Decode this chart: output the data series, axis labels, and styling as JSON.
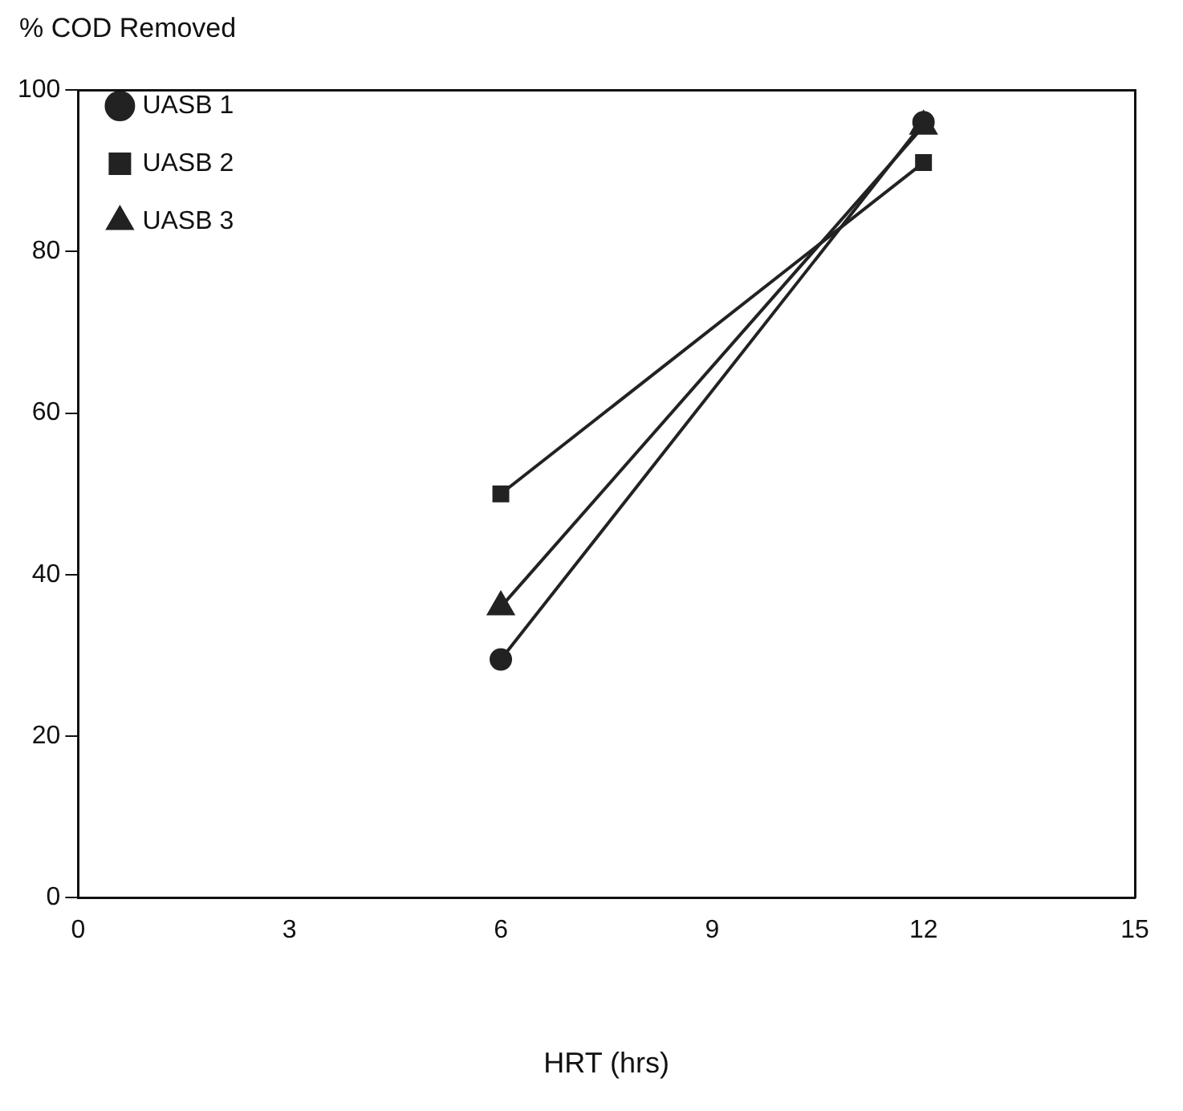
{
  "chart_data": {
    "type": "line",
    "ylabel": "% COD Removed",
    "xlabel": "HRT (hrs)",
    "x": [
      6,
      12
    ],
    "series": [
      {
        "name": "UASB 1",
        "color": "#222222",
        "marker": "circle",
        "values": [
          29.5,
          96
        ]
      },
      {
        "name": "UASB 2",
        "color": "#222222",
        "marker": "square",
        "values": [
          50,
          91
        ]
      },
      {
        "name": "UASB 3",
        "color": "#222222",
        "marker": "triangle",
        "values": [
          36,
          95.5
        ]
      }
    ],
    "xlim": [
      0,
      15
    ],
    "xticks": [
      0,
      3,
      6,
      9,
      12,
      15
    ],
    "ylim": [
      0,
      100
    ],
    "yticks": [
      0,
      20,
      40,
      60,
      80,
      100
    ],
    "grid": false,
    "legend": "top left",
    "line_style": "solid"
  }
}
